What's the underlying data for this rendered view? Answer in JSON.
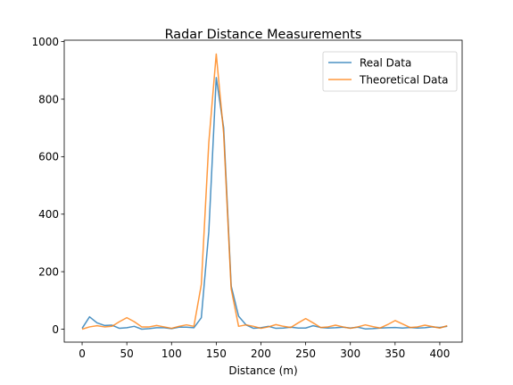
{
  "chart_data": {
    "type": "line",
    "title": "Radar Distance Measurements",
    "xlabel": "Distance (m)",
    "ylabel": "",
    "xlim": [
      -20,
      425
    ],
    "ylim": [
      -45,
      1005
    ],
    "xticks": [
      0,
      50,
      100,
      150,
      200,
      250,
      300,
      350,
      400
    ],
    "yticks": [
      0,
      200,
      400,
      600,
      800,
      1000
    ],
    "grid": false,
    "legend_position": "top-right",
    "x": [
      0,
      8.3,
      16.7,
      25,
      33.3,
      41.7,
      50,
      58.3,
      66.7,
      75,
      83.3,
      91.7,
      100,
      108.3,
      116.7,
      125,
      133.3,
      141.7,
      150,
      158.3,
      166.7,
      175,
      183.3,
      191.7,
      200,
      208.3,
      216.7,
      225,
      233.3,
      241.7,
      250,
      258.3,
      266.7,
      275,
      283.3,
      291.7,
      300,
      308.3,
      316.7,
      325,
      333.3,
      341.7,
      350,
      358.3,
      366.7,
      375,
      383.3,
      391.7,
      400,
      408.3
    ],
    "series": [
      {
        "name": "Real Data",
        "color": "#1f77b4",
        "values": [
          3,
          43,
          22,
          13,
          14,
          3,
          5,
          10,
          0,
          2,
          5,
          5,
          2,
          7,
          7,
          5,
          40,
          340,
          875,
          700,
          150,
          45,
          15,
          3,
          5,
          10,
          3,
          4,
          7,
          4,
          4,
          12,
          6,
          4,
          5,
          7,
          4,
          7,
          1,
          2,
          4,
          5,
          6,
          4,
          6,
          4,
          5,
          8,
          6,
          10
        ]
      },
      {
        "name": "Theoretical Data",
        "color": "#ff7f0e",
        "values": [
          0,
          8,
          12,
          8,
          10,
          26,
          40,
          26,
          8,
          8,
          13,
          8,
          3,
          10,
          15,
          10,
          155,
          650,
          957,
          680,
          140,
          10,
          15,
          10,
          3,
          8,
          16,
          10,
          6,
          22,
          37,
          22,
          6,
          8,
          14,
          8,
          3,
          8,
          15,
          9,
          4,
          16,
          30,
          18,
          6,
          8,
          14,
          9,
          4,
          12
        ]
      }
    ]
  }
}
